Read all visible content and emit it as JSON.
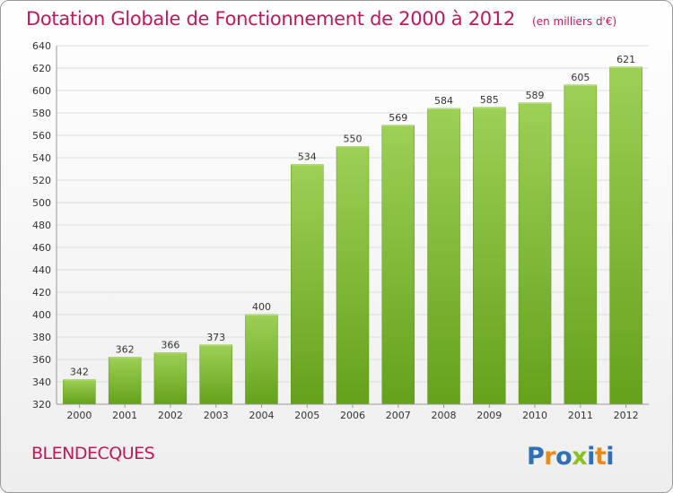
{
  "colors": {
    "accent": "#c2185b",
    "bar_light": "#9dd056",
    "bar_dark": "#65a11b",
    "grid": "#dcdcdc",
    "axis_text": "#333333"
  },
  "header": {
    "title": "Dotation Globale de Fonctionnement de 2000 à 2012",
    "unit": "(en milliers d'€)"
  },
  "footer": {
    "commune": "BLENDECQUES",
    "logo_text": "Proxiti"
  },
  "chart_data": {
    "type": "bar",
    "title": "Dotation Globale de Fonctionnement de 2000 à 2012",
    "subtitle": "(en milliers d'€)",
    "xlabel": "",
    "ylabel": "",
    "categories": [
      "2000",
      "2001",
      "2002",
      "2003",
      "2004",
      "2005",
      "2006",
      "2007",
      "2008",
      "2009",
      "2010",
      "2011",
      "2012"
    ],
    "values": [
      342,
      362,
      366,
      373,
      400,
      534,
      550,
      569,
      584,
      585,
      589,
      605,
      621
    ],
    "ylim": [
      320,
      640
    ],
    "yticks": [
      320,
      340,
      360,
      380,
      400,
      420,
      440,
      460,
      480,
      500,
      520,
      540,
      560,
      580,
      600,
      620,
      640
    ],
    "grid": true,
    "legend": "none",
    "data_labels": true
  }
}
